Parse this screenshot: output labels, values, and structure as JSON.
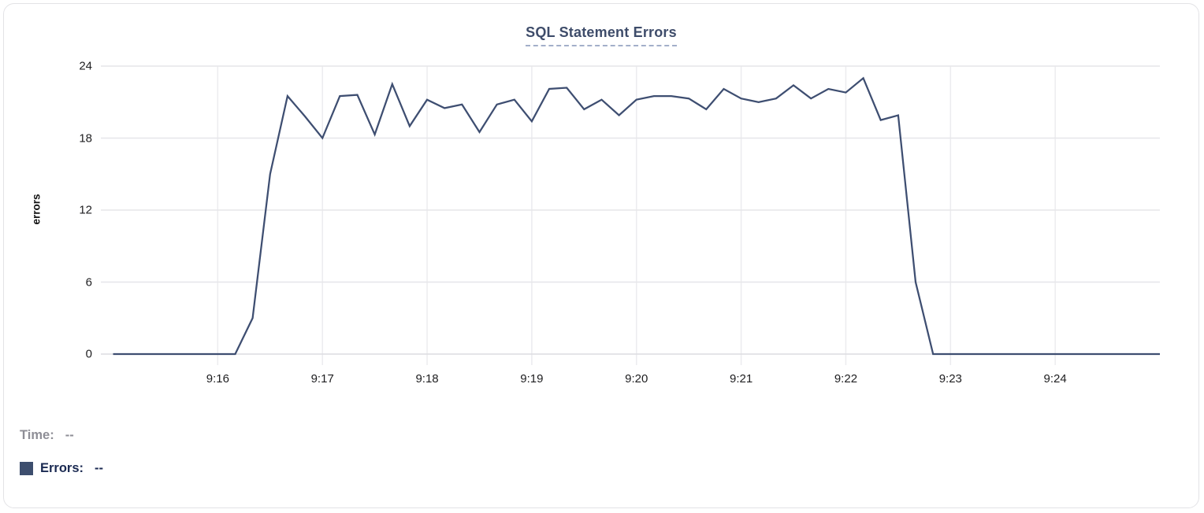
{
  "chart_data": {
    "type": "line",
    "title": "SQL Statement Errors",
    "xlabel": "",
    "ylabel": "errors",
    "yticks": [
      0,
      6,
      12,
      18,
      24
    ],
    "ylim": [
      0,
      24
    ],
    "xticks": [
      "9:16",
      "9:17",
      "9:18",
      "9:19",
      "9:20",
      "9:21",
      "9:22",
      "9:23",
      "9:24"
    ],
    "x_domain": [
      "9:14:53",
      "9:25:00"
    ],
    "grid": true,
    "legend_position": "bottom-left",
    "series": [
      {
        "name": "Errors",
        "color": "#3e4e71",
        "x": [
          "9:15:00",
          "9:15:10",
          "9:15:20",
          "9:15:30",
          "9:15:40",
          "9:15:50",
          "9:16:00",
          "9:16:10",
          "9:16:20",
          "9:16:30",
          "9:16:40",
          "9:16:50",
          "9:17:00",
          "9:17:10",
          "9:17:20",
          "9:17:30",
          "9:17:40",
          "9:17:50",
          "9:18:00",
          "9:18:10",
          "9:18:20",
          "9:18:30",
          "9:18:40",
          "9:18:50",
          "9:19:00",
          "9:19:10",
          "9:19:20",
          "9:19:30",
          "9:19:40",
          "9:19:50",
          "9:20:00",
          "9:20:10",
          "9:20:20",
          "9:20:30",
          "9:20:40",
          "9:20:50",
          "9:21:00",
          "9:21:10",
          "9:21:20",
          "9:21:30",
          "9:21:40",
          "9:21:50",
          "9:22:00",
          "9:22:10",
          "9:22:20",
          "9:22:30",
          "9:22:40",
          "9:22:50",
          "9:23:00",
          "9:23:10",
          "9:23:20",
          "9:23:30",
          "9:23:40",
          "9:23:50",
          "9:24:00",
          "9:24:10",
          "9:24:20",
          "9:24:30",
          "9:24:40",
          "9:24:50",
          "9:25:00"
        ],
        "values": [
          0,
          0,
          0,
          0,
          0,
          0,
          0,
          0,
          3,
          15,
          21.5,
          19.8,
          18,
          21.5,
          21.6,
          18.3,
          22.5,
          19,
          21.2,
          20.5,
          20.8,
          18.5,
          20.8,
          21.2,
          19.4,
          22.1,
          22.2,
          20.4,
          21.2,
          19.9,
          21.2,
          21.5,
          21.5,
          21.3,
          20.4,
          22.1,
          21.3,
          21,
          21.3,
          22.4,
          21.3,
          22.1,
          21.8,
          23,
          19.5,
          19.9,
          6,
          0,
          0,
          0,
          0,
          0,
          0,
          0,
          0,
          0,
          0,
          0,
          0,
          0,
          0
        ]
      }
    ]
  },
  "tooltip": {
    "time_label": "Time:",
    "time_value": "--",
    "errors_label": "Errors:",
    "errors_value": "--"
  },
  "colors": {
    "line": "#3e4e71",
    "swatch": "#3d4e6e",
    "grid_horizontal": "#e6e6e9",
    "grid_vertical": "#ececef",
    "zero_line": "#dcdce0",
    "title": "#3e4c6a",
    "title_dash": "#a3afc9",
    "tick_text": "#1e1e20",
    "time_text": "#8e8e96",
    "errors_text": "#1b2a52",
    "card_border": "#e3e3e6"
  }
}
